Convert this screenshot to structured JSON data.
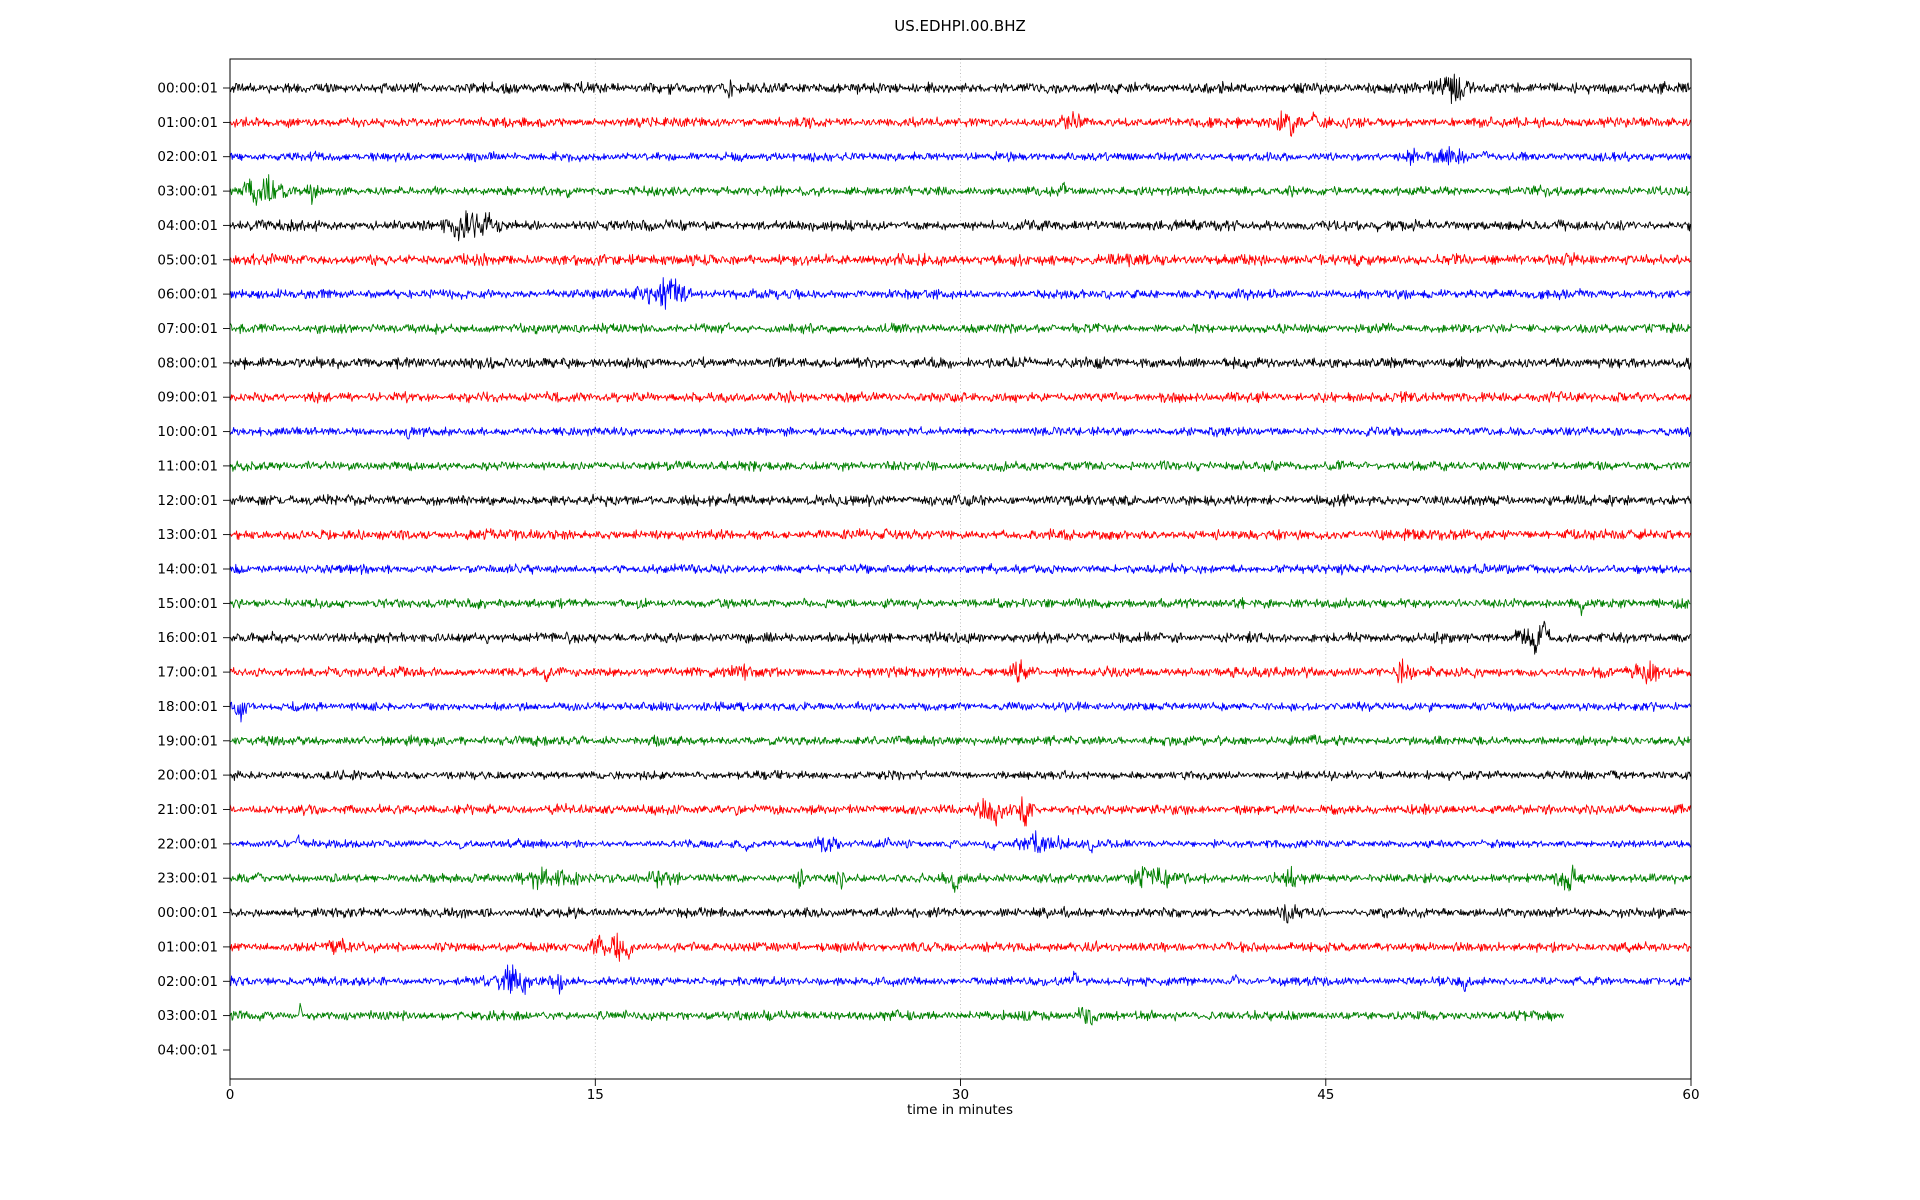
{
  "title": "US.EDHPI.00.BHZ",
  "chart_data": {
    "type": "line",
    "subtype": "seismogram-helicorder",
    "title": "US.EDHPI.00.BHZ",
    "xlabel": "time in minutes",
    "xlim": [
      0,
      60
    ],
    "x_ticks": [
      0,
      15,
      30,
      45,
      60
    ],
    "grid": {
      "vertical_at": [
        15,
        30,
        45
      ],
      "style": "dotted",
      "color": "#b0b0b0"
    },
    "colors_cycle": [
      "#000000",
      "#ff0000",
      "#0000ff",
      "#008000"
    ],
    "y_tick_labels": [
      "00:00:01",
      "01:00:01",
      "02:00:01",
      "03:00:01",
      "04:00:01",
      "05:00:01",
      "06:00:01",
      "07:00:01",
      "08:00:01",
      "09:00:01",
      "10:00:01",
      "11:00:01",
      "12:00:01",
      "13:00:01",
      "14:00:01",
      "15:00:01",
      "16:00:01",
      "17:00:01",
      "18:00:01",
      "19:00:01",
      "20:00:01",
      "21:00:01",
      "22:00:01",
      "23:00:01",
      "00:00:01",
      "01:00:01",
      "02:00:01",
      "03:00:01",
      "04:00:01"
    ],
    "rows": [
      {
        "label": "00:00:01",
        "color": "#000000",
        "amp": 3.6,
        "events": [
          {
            "t": 20.5,
            "w": 0.25,
            "gain": 1.2
          },
          {
            "t": 50.2,
            "w": 0.7,
            "gain": 2.4
          }
        ]
      },
      {
        "label": "01:00:01",
        "color": "#ff0000",
        "amp": 3.4,
        "events": [
          {
            "t": 34.6,
            "w": 0.4,
            "gain": 1.2
          },
          {
            "t": 43.3,
            "w": 0.5,
            "gain": 2.0
          },
          {
            "t": 43.6,
            "w": 0.1,
            "gain": 4.5,
            "dir": -1
          },
          {
            "t": 44.5,
            "w": 0.12,
            "gain": 3.2,
            "dir": 1
          }
        ]
      },
      {
        "label": "02:00:01",
        "color": "#0000ff",
        "amp": 3.0,
        "events": [
          {
            "t": 48.4,
            "w": 0.3,
            "gain": 1.8
          },
          {
            "t": 50.1,
            "w": 0.6,
            "gain": 1.8
          },
          {
            "t": 51.5,
            "w": 0.1,
            "gain": 4,
            "dir": 1
          }
        ]
      },
      {
        "label": "03:00:01",
        "color": "#008000",
        "amp": 3.2,
        "events": [
          {
            "t": 1.3,
            "w": 0.7,
            "gain": 3.2
          },
          {
            "t": 3.3,
            "w": 0.3,
            "gain": 1.8
          },
          {
            "t": 13.9,
            "w": 0.08,
            "gain": 3,
            "dir": -1
          },
          {
            "t": 34.2,
            "w": 0.08,
            "gain": 3.5,
            "dir": 1
          }
        ]
      },
      {
        "label": "04:00:01",
        "color": "#000000",
        "amp": 3.6,
        "events": [
          {
            "t": 9.8,
            "w": 0.6,
            "gain": 2.8
          },
          {
            "t": 9.7,
            "w": 0.12,
            "gain": 3.5,
            "dir": -1
          },
          {
            "t": 10.5,
            "w": 0.3,
            "gain": 2.2
          }
        ]
      },
      {
        "label": "05:00:01",
        "color": "#ff0000",
        "amp": 3.8,
        "events": []
      },
      {
        "label": "06:00:01",
        "color": "#0000ff",
        "amp": 3.2,
        "events": [
          {
            "t": 17.8,
            "w": 0.9,
            "gain": 2.6
          },
          {
            "t": 18.1,
            "w": 0.2,
            "gain": 3,
            "dir": 1
          }
        ]
      },
      {
        "label": "07:00:01",
        "color": "#008000",
        "amp": 3.2,
        "events": []
      },
      {
        "label": "08:00:01",
        "color": "#000000",
        "amp": 3.6,
        "events": []
      },
      {
        "label": "09:00:01",
        "color": "#ff0000",
        "amp": 3.4,
        "events": []
      },
      {
        "label": "10:00:01",
        "color": "#0000ff",
        "amp": 3.0,
        "events": [
          {
            "t": 7.3,
            "w": 0.07,
            "gain": 3,
            "dir": -1
          }
        ]
      },
      {
        "label": "11:00:01",
        "color": "#008000",
        "amp": 3.2,
        "events": []
      },
      {
        "label": "12:00:01",
        "color": "#000000",
        "amp": 3.6,
        "events": []
      },
      {
        "label": "13:00:01",
        "color": "#ff0000",
        "amp": 3.5,
        "events": []
      },
      {
        "label": "14:00:01",
        "color": "#0000ff",
        "amp": 3.1,
        "events": []
      },
      {
        "label": "15:00:01",
        "color": "#008000",
        "amp": 3.2,
        "events": [
          {
            "t": 55.5,
            "w": 0.08,
            "gain": 3.5,
            "dir": -1
          }
        ]
      },
      {
        "label": "16:00:01",
        "color": "#000000",
        "amp": 3.5,
        "events": [
          {
            "t": 53.4,
            "w": 0.4,
            "gain": 2.6
          },
          {
            "t": 53.6,
            "w": 0.1,
            "gain": 4,
            "dir": -1
          },
          {
            "t": 54.0,
            "w": 0.15,
            "gain": 4.5,
            "dir": 1
          }
        ]
      },
      {
        "label": "17:00:01",
        "color": "#ff0000",
        "amp": 3.4,
        "events": [
          {
            "t": 13.0,
            "w": 0.07,
            "gain": 2.5,
            "dir": -1
          },
          {
            "t": 21.0,
            "w": 0.3,
            "gain": 1.4
          },
          {
            "t": 32.4,
            "w": 0.3,
            "gain": 1.8
          },
          {
            "t": 32.5,
            "w": 0.08,
            "gain": 2.5,
            "dir": 1
          },
          {
            "t": 48.2,
            "w": 0.3,
            "gain": 2.2
          },
          {
            "t": 58.2,
            "w": 0.5,
            "gain": 1.8
          }
        ]
      },
      {
        "label": "18:00:01",
        "color": "#0000ff",
        "amp": 3.0,
        "events": [
          {
            "t": 0.5,
            "w": 0.2,
            "gain": 2
          },
          {
            "t": 0.5,
            "w": 0.12,
            "gain": 3,
            "dir": -1
          }
        ]
      },
      {
        "label": "19:00:01",
        "color": "#008000",
        "amp": 3.2,
        "events": []
      },
      {
        "label": "20:00:01",
        "color": "#000000",
        "amp": 3.0,
        "events": []
      },
      {
        "label": "21:00:01",
        "color": "#ff0000",
        "amp": 3.4,
        "events": [
          {
            "t": 31.3,
            "w": 0.5,
            "gain": 2.2
          },
          {
            "t": 31.5,
            "w": 0.1,
            "gain": 3,
            "dir": -1
          },
          {
            "t": 32.6,
            "w": 0.3,
            "gain": 2.6
          },
          {
            "t": 32.7,
            "w": 0.1,
            "gain": 4,
            "dir": -1
          }
        ]
      },
      {
        "label": "22:00:01",
        "color": "#0000ff",
        "amp": 2.7,
        "events": [
          {
            "t": 2.8,
            "w": 0.08,
            "gain": 3,
            "dir": 1
          },
          {
            "t": 8.0,
            "w": 0.08,
            "gain": 2,
            "dir": 1
          },
          {
            "t": 9.5,
            "w": 0.1,
            "gain": 3.5,
            "dir": -1
          },
          {
            "t": 11.9,
            "w": 0.12,
            "gain": 3,
            "dir": 1
          },
          {
            "t": 12.0,
            "w": 0.1,
            "gain": 2.5,
            "dir": -1
          },
          {
            "t": 21.2,
            "w": 0.2,
            "gain": 2.5,
            "dir": -1
          },
          {
            "t": 24.5,
            "w": 0.5,
            "gain": 1.6
          },
          {
            "t": 27.0,
            "w": 0.08,
            "gain": 2,
            "dir": 1
          },
          {
            "t": 29.5,
            "w": 0.08,
            "gain": 2.5,
            "dir": -1
          },
          {
            "t": 31.3,
            "w": 0.15,
            "gain": 2.5,
            "dir": -1
          },
          {
            "t": 33.3,
            "w": 0.8,
            "gain": 2.2
          },
          {
            "t": 33.0,
            "w": 0.1,
            "gain": 3,
            "dir": 1
          },
          {
            "t": 35.4,
            "w": 0.15,
            "gain": 2.5,
            "dir": -1
          }
        ]
      },
      {
        "label": "23:00:01",
        "color": "#008000",
        "amp": 3.1,
        "events": [
          {
            "t": 1.2,
            "w": 0.08,
            "gain": 3.5,
            "dir": 1
          },
          {
            "t": 13.0,
            "w": 1.0,
            "gain": 1.8
          },
          {
            "t": 17.8,
            "w": 0.6,
            "gain": 1.5
          },
          {
            "t": 23.5,
            "w": 0.25,
            "gain": 1.5
          },
          {
            "t": 25.1,
            "w": 0.2,
            "gain": 1.5
          },
          {
            "t": 29.6,
            "w": 0.2,
            "gain": 1.5
          },
          {
            "t": 29.8,
            "w": 0.1,
            "gain": 4.5,
            "dir": -1
          },
          {
            "t": 37.8,
            "w": 0.8,
            "gain": 1.8
          },
          {
            "t": 43.5,
            "w": 0.5,
            "gain": 1.5
          },
          {
            "t": 55.0,
            "w": 0.4,
            "gain": 2.5
          }
        ]
      },
      {
        "label": "00:00:01",
        "color": "#000000",
        "amp": 3.3,
        "events": [
          {
            "t": 43.5,
            "w": 0.5,
            "gain": 1.3
          }
        ]
      },
      {
        "label": "01:00:01",
        "color": "#ff0000",
        "amp": 3.3,
        "events": [
          {
            "t": 4.5,
            "w": 0.4,
            "gain": 1.6
          },
          {
            "t": 15.3,
            "w": 0.4,
            "gain": 2.4
          },
          {
            "t": 16.0,
            "w": 0.3,
            "gain": 2
          },
          {
            "t": 16.3,
            "w": 0.2,
            "gain": 3.5,
            "dir": -1
          }
        ]
      },
      {
        "label": "02:00:01",
        "color": "#0000ff",
        "amp": 3.0,
        "events": [
          {
            "t": 11.6,
            "w": 0.6,
            "gain": 3
          },
          {
            "t": 11.4,
            "w": 0.15,
            "gain": 3.5,
            "dir": 1
          },
          {
            "t": 12.1,
            "w": 0.1,
            "gain": 3,
            "dir": -1
          },
          {
            "t": 13.5,
            "w": 0.3,
            "gain": 2.2
          },
          {
            "t": 34.7,
            "w": 0.1,
            "gain": 3.5,
            "dir": 1
          },
          {
            "t": 41.3,
            "w": 0.12,
            "gain": 3,
            "dir": 1
          },
          {
            "t": 50.7,
            "w": 0.1,
            "gain": 3,
            "dir": -1
          }
        ]
      },
      {
        "label": "03:00:01",
        "color": "#008000",
        "amp": 3.2,
        "end": 54.8,
        "events": [
          {
            "t": 2.9,
            "w": 0.08,
            "gain": 4,
            "dir": 1
          },
          {
            "t": 35.2,
            "w": 0.4,
            "gain": 1.7
          }
        ]
      }
    ]
  }
}
